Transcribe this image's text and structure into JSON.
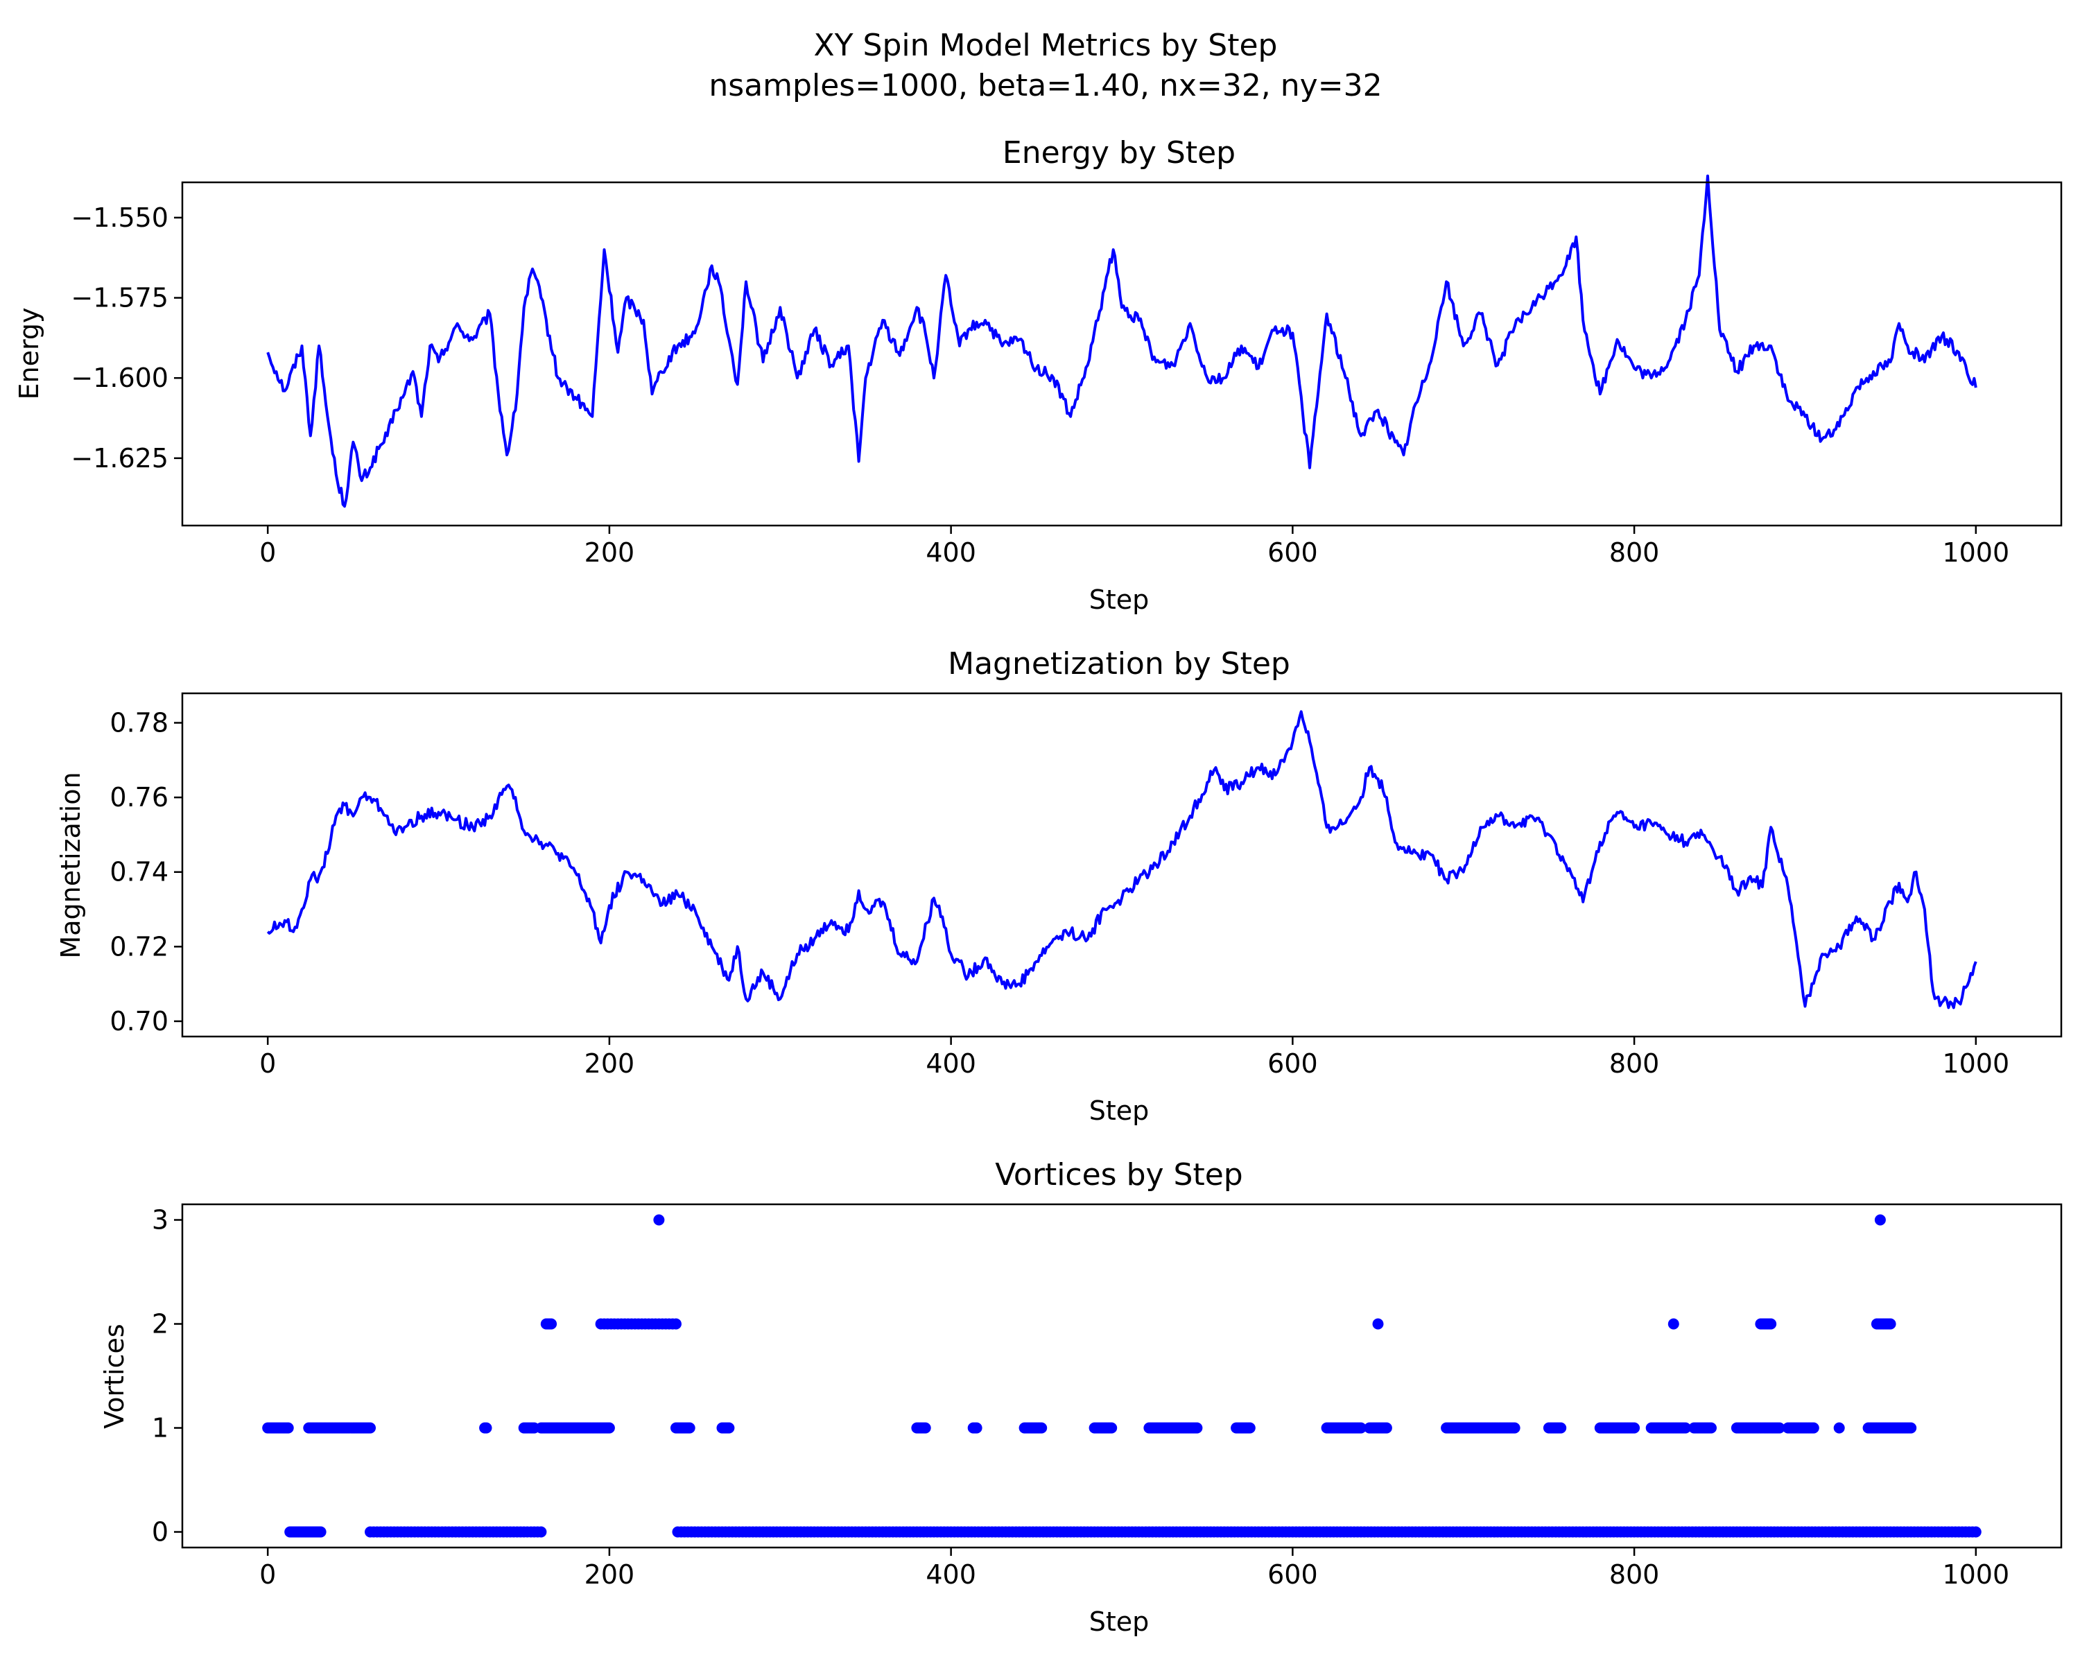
{
  "figure": {
    "title_line1": "XY Spin Model Metrics by Step",
    "title_line2": "nsamples=1000, beta=1.40, nx=32, ny=32"
  },
  "colors": {
    "series": "#0000ff",
    "axes": "#000000",
    "background": "#ffffff"
  },
  "chart_data": [
    {
      "type": "line",
      "title": "Energy by Step",
      "xlabel": "Step",
      "ylabel": "Energy",
      "xlim": [
        -50,
        1050
      ],
      "ylim": [
        -1.646,
        -1.539
      ],
      "xticks": [
        0,
        200,
        400,
        600,
        800,
        1000
      ],
      "yticks": [
        -1.55,
        -1.575,
        -1.6,
        -1.625
      ],
      "ytick_labels": [
        "−1.550",
        "−1.575",
        "−1.600",
        "−1.625"
      ],
      "grid": false,
      "series": [
        {
          "color": "#0000ff",
          "x": [
            0,
            10,
            20,
            25,
            30,
            35,
            40,
            45,
            50,
            55,
            60,
            65,
            70,
            75,
            80,
            85,
            90,
            95,
            100,
            110,
            120,
            130,
            135,
            140,
            145,
            150,
            155,
            160,
            170,
            180,
            190,
            197,
            205,
            210,
            220,
            225,
            230,
            240,
            250,
            260,
            264,
            270,
            275,
            280,
            290,
            300,
            310,
            320,
            330,
            340,
            346,
            350,
            360,
            370,
            380,
            385,
            390,
            397,
            400,
            405,
            410,
            420,
            430,
            440,
            450,
            460,
            470,
            480,
            490,
            495,
            500,
            510,
            520,
            530,
            540,
            550,
            560,
            570,
            580,
            590,
            600,
            610,
            620,
            630,
            640,
            650,
            660,
            665,
            670,
            680,
            690,
            700,
            710,
            720,
            730,
            740,
            750,
            760,
            766,
            770,
            780,
            790,
            800,
            810,
            820,
            830,
            838,
            843,
            850,
            860,
            870,
            880,
            890,
            900,
            910,
            920,
            930,
            940,
            950,
            955,
            960,
            970,
            980,
            990,
            1000
          ],
          "y": [
            -1.592,
            -1.604,
            -1.59,
            -1.618,
            -1.59,
            -1.612,
            -1.63,
            -1.64,
            -1.62,
            -1.632,
            -1.628,
            -1.622,
            -1.618,
            -1.61,
            -1.605,
            -1.598,
            -1.612,
            -1.59,
            -1.595,
            -1.584,
            -1.588,
            -1.58,
            -1.605,
            -1.624,
            -1.61,
            -1.578,
            -1.566,
            -1.575,
            -1.6,
            -1.606,
            -1.612,
            -1.56,
            -1.592,
            -1.575,
            -1.582,
            -1.605,
            -1.598,
            -1.59,
            -1.586,
            -1.565,
            -1.57,
            -1.588,
            -1.602,
            -1.57,
            -1.595,
            -1.578,
            -1.6,
            -1.585,
            -1.596,
            -1.59,
            -1.626,
            -1.6,
            -1.582,
            -1.593,
            -1.578,
            -1.586,
            -1.6,
            -1.568,
            -1.577,
            -1.59,
            -1.585,
            -1.582,
            -1.59,
            -1.588,
            -1.597,
            -1.6,
            -1.612,
            -1.596,
            -1.572,
            -1.56,
            -1.578,
            -1.582,
            -1.595,
            -1.596,
            -1.583,
            -1.6,
            -1.6,
            -1.59,
            -1.597,
            -1.584,
            -1.586,
            -1.628,
            -1.58,
            -1.598,
            -1.618,
            -1.61,
            -1.62,
            -1.624,
            -1.612,
            -1.596,
            -1.57,
            -1.59,
            -1.58,
            -1.596,
            -1.584,
            -1.578,
            -1.572,
            -1.565,
            -1.556,
            -1.582,
            -1.605,
            -1.588,
            -1.597,
            -1.6,
            -1.595,
            -1.582,
            -1.568,
            -1.537,
            -1.585,
            -1.598,
            -1.59,
            -1.59,
            -1.607,
            -1.612,
            -1.619,
            -1.615,
            -1.603,
            -1.598,
            -1.595,
            -1.583,
            -1.59,
            -1.595,
            -1.587,
            -1.592,
            -1.603
          ]
        }
      ]
    },
    {
      "type": "line",
      "title": "Magnetization by Step",
      "xlabel": "Step",
      "ylabel": "Magnetization",
      "xlim": [
        -50,
        1050
      ],
      "ylim": [
        0.6959,
        0.7879
      ],
      "xticks": [
        0,
        200,
        400,
        600,
        800,
        1000
      ],
      "yticks": [
        0.7,
        0.72,
        0.74,
        0.76,
        0.78
      ],
      "ytick_labels": [
        "0.70",
        "0.72",
        "0.74",
        "0.76",
        "0.78"
      ],
      "grid": false,
      "series": [
        {
          "color": "#0000ff",
          "x": [
            0,
            10,
            15,
            20,
            25,
            30,
            35,
            40,
            45,
            50,
            55,
            60,
            70,
            75,
            80,
            90,
            100,
            110,
            120,
            130,
            140,
            145,
            150,
            160,
            170,
            180,
            190,
            195,
            200,
            210,
            220,
            230,
            240,
            250,
            255,
            260,
            270,
            275,
            280,
            290,
            300,
            310,
            320,
            330,
            340,
            346,
            350,
            360,
            370,
            380,
            390,
            395,
            400,
            405,
            410,
            420,
            430,
            440,
            450,
            460,
            470,
            480,
            490,
            500,
            510,
            520,
            530,
            540,
            550,
            555,
            560,
            570,
            580,
            590,
            600,
            605,
            610,
            620,
            630,
            640,
            645,
            650,
            655,
            660,
            670,
            680,
            690,
            700,
            710,
            720,
            730,
            740,
            750,
            760,
            770,
            780,
            790,
            800,
            810,
            820,
            830,
            840,
            850,
            860,
            870,
            875,
            880,
            890,
            900,
            910,
            920,
            930,
            940,
            950,
            955,
            960,
            965,
            970,
            975,
            980,
            990,
            1000
          ],
          "y": [
            0.724,
            0.727,
            0.724,
            0.73,
            0.738,
            0.739,
            0.745,
            0.755,
            0.758,
            0.755,
            0.76,
            0.76,
            0.755,
            0.75,
            0.752,
            0.755,
            0.756,
            0.754,
            0.752,
            0.755,
            0.763,
            0.76,
            0.751,
            0.748,
            0.745,
            0.74,
            0.73,
            0.721,
            0.731,
            0.74,
            0.738,
            0.731,
            0.734,
            0.73,
            0.725,
            0.72,
            0.711,
            0.72,
            0.706,
            0.713,
            0.706,
            0.718,
            0.722,
            0.727,
            0.724,
            0.735,
            0.73,
            0.732,
            0.718,
            0.716,
            0.733,
            0.728,
            0.718,
            0.716,
            0.712,
            0.717,
            0.71,
            0.71,
            0.716,
            0.722,
            0.724,
            0.722,
            0.73,
            0.733,
            0.738,
            0.742,
            0.748,
            0.755,
            0.764,
            0.768,
            0.762,
            0.764,
            0.768,
            0.766,
            0.775,
            0.783,
            0.775,
            0.752,
            0.753,
            0.76,
            0.768,
            0.765,
            0.76,
            0.748,
            0.745,
            0.745,
            0.738,
            0.74,
            0.752,
            0.755,
            0.752,
            0.755,
            0.75,
            0.742,
            0.732,
            0.748,
            0.756,
            0.752,
            0.753,
            0.75,
            0.748,
            0.75,
            0.744,
            0.735,
            0.738,
            0.736,
            0.752,
            0.736,
            0.704,
            0.718,
            0.72,
            0.728,
            0.722,
            0.732,
            0.737,
            0.732,
            0.74,
            0.73,
            0.708,
            0.705,
            0.705,
            0.716
          ]
        }
      ]
    },
    {
      "type": "scatter",
      "title": "Vortices by Step",
      "xlabel": "Step",
      "ylabel": "Vortices",
      "xlim": [
        -50,
        1050
      ],
      "ylim": [
        -0.15,
        3.15
      ],
      "xticks": [
        0,
        200,
        400,
        600,
        800,
        1000
      ],
      "yticks": [
        0,
        1,
        2,
        3
      ],
      "ytick_labels": [
        "0",
        "1",
        "2",
        "3"
      ],
      "grid": false,
      "series": [
        {
          "color": "#0000ff",
          "value_runs": [
            {
              "value": 1,
              "from": 0,
              "to": 12
            },
            {
              "value": 0,
              "from": 13,
              "to": 31
            },
            {
              "value": 1,
              "from": 24,
              "to": 60
            },
            {
              "value": 0,
              "from": 60,
              "to": 160
            },
            {
              "value": 1,
              "from": 127,
              "to": 128
            },
            {
              "value": 1,
              "from": 150,
              "to": 156
            },
            {
              "value": 2,
              "from": 163,
              "to": 166
            },
            {
              "value": 1,
              "from": 160,
              "to": 200
            },
            {
              "value": 2,
              "from": 195,
              "to": 240
            },
            {
              "value": 3,
              "from": 229,
              "to": 229
            },
            {
              "value": 1,
              "from": 239,
              "to": 247
            },
            {
              "value": 1,
              "from": 266,
              "to": 270
            },
            {
              "value": 0,
              "from": 240,
              "to": 1000
            },
            {
              "value": 1,
              "from": 380,
              "to": 385
            },
            {
              "value": 1,
              "from": 413,
              "to": 415
            },
            {
              "value": 1,
              "from": 443,
              "to": 453
            },
            {
              "value": 1,
              "from": 484,
              "to": 494
            },
            {
              "value": 1,
              "from": 516,
              "to": 544
            },
            {
              "value": 1,
              "from": 567,
              "to": 575
            },
            {
              "value": 1,
              "from": 620,
              "to": 640
            },
            {
              "value": 1,
              "from": 645,
              "to": 655
            },
            {
              "value": 2,
              "from": 650,
              "to": 650
            },
            {
              "value": 1,
              "from": 690,
              "to": 730
            },
            {
              "value": 1,
              "from": 750,
              "to": 757
            },
            {
              "value": 1,
              "from": 780,
              "to": 800
            },
            {
              "value": 1,
              "from": 810,
              "to": 830
            },
            {
              "value": 2,
              "from": 823,
              "to": 823
            },
            {
              "value": 1,
              "from": 835,
              "to": 845
            },
            {
              "value": 1,
              "from": 860,
              "to": 885
            },
            {
              "value": 2,
              "from": 874,
              "to": 880
            },
            {
              "value": 1,
              "from": 890,
              "to": 905
            },
            {
              "value": 1,
              "from": 920,
              "to": 920
            },
            {
              "value": 1,
              "from": 937,
              "to": 962
            },
            {
              "value": 2,
              "from": 942,
              "to": 950
            },
            {
              "value": 3,
              "from": 944,
              "to": 944
            }
          ]
        }
      ]
    }
  ]
}
